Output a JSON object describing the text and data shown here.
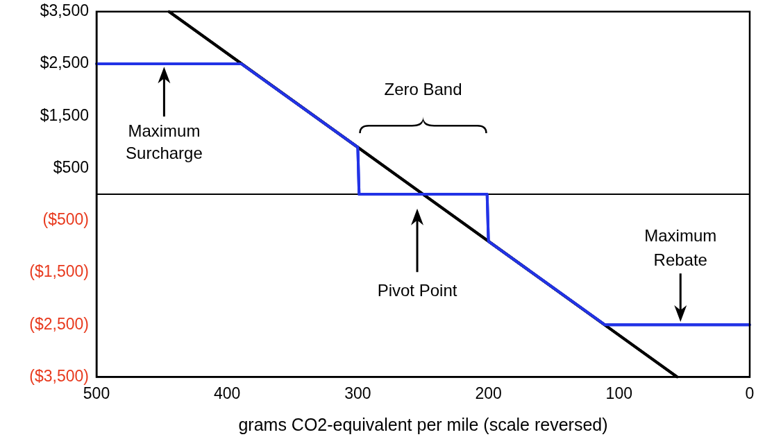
{
  "chart_data": {
    "type": "line",
    "xlabel": "grams CO2-equivalent per mile (scale reversed)",
    "xlim": [
      500,
      0
    ],
    "xticks": [
      500,
      400,
      300,
      200,
      100,
      0
    ],
    "ylim": [
      -3500,
      3500
    ],
    "yticks": [
      {
        "value": 3500,
        "label": "$3,500"
      },
      {
        "value": 2500,
        "label": "$2,500"
      },
      {
        "value": 1500,
        "label": "$1,500"
      },
      {
        "value": 500,
        "label": "$500"
      },
      {
        "value": -500,
        "label": "($500)"
      },
      {
        "value": -1500,
        "label": "($1,500)"
      },
      {
        "value": -2500,
        "label": "($2,500)"
      },
      {
        "value": -3500,
        "label": "($3,500)"
      }
    ],
    "grid": false,
    "legend": false,
    "marker": "none",
    "line_style": "solid",
    "ref_lines": [
      {
        "axis": "y",
        "value": 0,
        "color": "#000000"
      }
    ],
    "series": [
      {
        "color": "#000000",
        "x": [
          444.4,
          55.6
        ],
        "values": [
          3500,
          -3500
        ]
      },
      {
        "color": "#2233e6",
        "x": [
          500,
          389,
          300,
          299,
          201,
          200,
          111,
          0
        ],
        "values": [
          2500,
          2500,
          900,
          0,
          0,
          -900,
          -2500,
          -2500
        ]
      }
    ],
    "annotations": [
      "Zero Band",
      "Maximum Surcharge",
      "Pivot Point",
      "Maximum Rebate"
    ]
  }
}
